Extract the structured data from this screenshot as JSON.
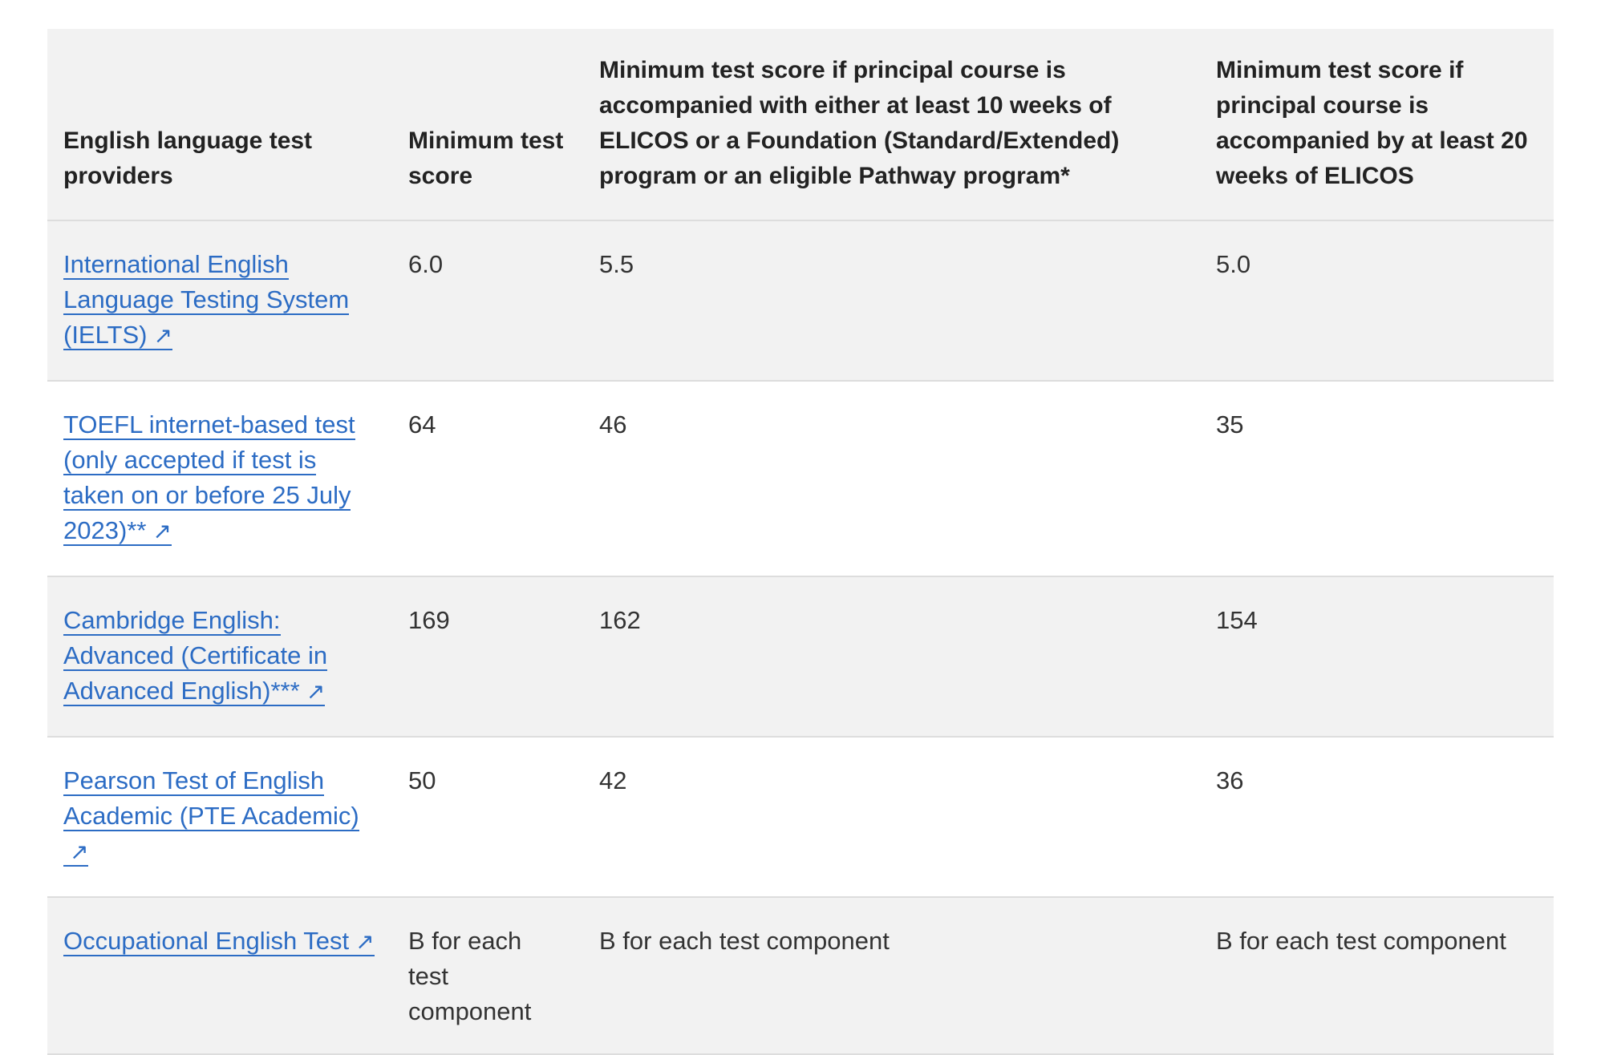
{
  "table": {
    "headers": [
      "English language test providers",
      "Minimum test score",
      "Minimum test score if principal course is accompanied with either at least 10 weeks of ELICOS or a Foundation (Standard/Extended) program or an eligible Pathway program*",
      "Minimum test score if principal course is accompanied by at least 20 weeks of ELICOS"
    ],
    "external_link_icon": "↗",
    "rows": [
      {
        "provider": "International English Language Testing System (IELTS)",
        "min_score": "6.0",
        "min_score_10_weeks": "5.5",
        "min_score_20_weeks": "5.0"
      },
      {
        "provider": "TOEFL internet-based test (only accepted if test is taken on or before 25 July 2023)**",
        "min_score": "64",
        "min_score_10_weeks": "46",
        "min_score_20_weeks": "35"
      },
      {
        "provider": "Cambridge English: Advanced (Certificate in Advanced English)***",
        "min_score": "169",
        "min_score_10_weeks": "162",
        "min_score_20_weeks": "154"
      },
      {
        "provider": "Pearson Test of English Academic (PTE Academic)",
        "min_score": "50",
        "min_score_10_weeks": "42",
        "min_score_20_weeks": "36"
      },
      {
        "provider": "Occupational English Test",
        "min_score": "B for each test component",
        "min_score_10_weeks": "B for each test component",
        "min_score_20_weeks": "B for each test component"
      }
    ]
  },
  "colors": {
    "link": "#2c6cc4",
    "header_bg": "#f2f2f2",
    "shaded_row_bg": "#f2f2f2",
    "border": "#dddddd"
  }
}
